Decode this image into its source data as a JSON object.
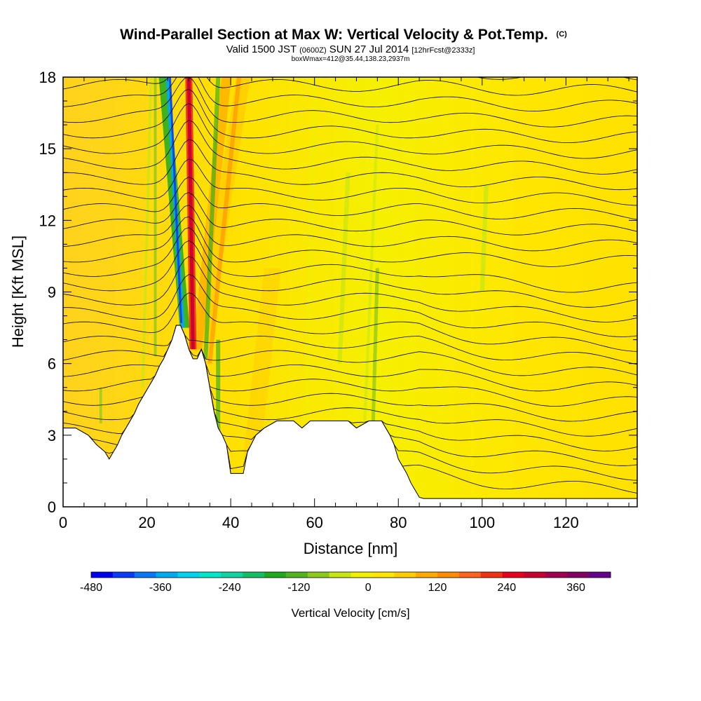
{
  "chart_data": {
    "type": "heatmap",
    "title": "Wind-Parallel Section at Max W: Vertical Velocity & Pot.Temp.",
    "title_mark": "(C)",
    "subtitle_parts": [
      "Valid 1500 JST ",
      "(0600Z)",
      " SUN 27 Jul 2014 ",
      "[12hrFcst@2333z]"
    ],
    "subtitle2": "boxWmax=412@35.44,138.23,2937m",
    "xlabel": "Distance [nm]",
    "ylabel": "Height [Kft MSL]",
    "xlim": [
      0,
      137
    ],
    "ylim": [
      0,
      18
    ],
    "xticks": [
      0,
      20,
      40,
      60,
      80,
      100,
      120
    ],
    "yticks": [
      0,
      3,
      6,
      9,
      12,
      15,
      18
    ],
    "grid": false,
    "colorbar": {
      "title": "Vertical Velocity [cm/s]",
      "min": -480,
      "max": 420,
      "step": 40,
      "ticks": [
        -480,
        -360,
        -240,
        -120,
        0,
        120,
        240,
        360
      ],
      "colors": [
        "#0000f0",
        "#0a3cf5",
        "#0a78f5",
        "#00aaf0",
        "#00d2f0",
        "#00e6c8",
        "#10d2a0",
        "#14be64",
        "#1eaa1e",
        "#50b41e",
        "#8cc81e",
        "#c8e614",
        "#f0f000",
        "#ffe600",
        "#ffcd00",
        "#ffaa00",
        "#ff8c00",
        "#ff641e",
        "#f03214",
        "#e6001e",
        "#c80032",
        "#a00050",
        "#820064",
        "#64008c"
      ]
    },
    "terrain_kft": [
      [
        0,
        3.3
      ],
      [
        3,
        3.3
      ],
      [
        6,
        3.0
      ],
      [
        8,
        2.6
      ],
      [
        10,
        2.3
      ],
      [
        11,
        2.0
      ],
      [
        12,
        2.3
      ],
      [
        13,
        2.6
      ],
      [
        14,
        3.0
      ],
      [
        15,
        3.3
      ],
      [
        16,
        3.6
      ],
      [
        17,
        3.9
      ],
      [
        18,
        4.3
      ],
      [
        19,
        4.6
      ],
      [
        20,
        4.9
      ],
      [
        21,
        5.2
      ],
      [
        22,
        5.5
      ],
      [
        23,
        5.9
      ],
      [
        24,
        6.2
      ],
      [
        25,
        6.6
      ],
      [
        26,
        7.0
      ],
      [
        27,
        7.6
      ],
      [
        28,
        7.6
      ],
      [
        29,
        7.2
      ],
      [
        30,
        6.6
      ],
      [
        31,
        6.2
      ],
      [
        32,
        6.2
      ],
      [
        33,
        6.6
      ],
      [
        34,
        6.0
      ],
      [
        35,
        5.0
      ],
      [
        36,
        4.0
      ],
      [
        37,
        3.3
      ],
      [
        38,
        3.0
      ],
      [
        39,
        2.6
      ],
      [
        40,
        1.4
      ],
      [
        43,
        1.4
      ],
      [
        44,
        2.3
      ],
      [
        46,
        3.0
      ],
      [
        48,
        3.3
      ],
      [
        51,
        3.6
      ],
      [
        55,
        3.6
      ],
      [
        57,
        3.3
      ],
      [
        59,
        3.6
      ],
      [
        63,
        3.6
      ],
      [
        68,
        3.6
      ],
      [
        70,
        3.3
      ],
      [
        73,
        3.6
      ],
      [
        76,
        3.6
      ],
      [
        78,
        3.0
      ],
      [
        79,
        2.6
      ],
      [
        80,
        2.0
      ],
      [
        81,
        1.7
      ],
      [
        82,
        1.4
      ],
      [
        83,
        1.0
      ],
      [
        84,
        0.7
      ],
      [
        85,
        0.4
      ],
      [
        86,
        0.35
      ],
      [
        137,
        0.35
      ]
    ],
    "isentropes": "potential temperature contours, drawn as black lines"
  }
}
